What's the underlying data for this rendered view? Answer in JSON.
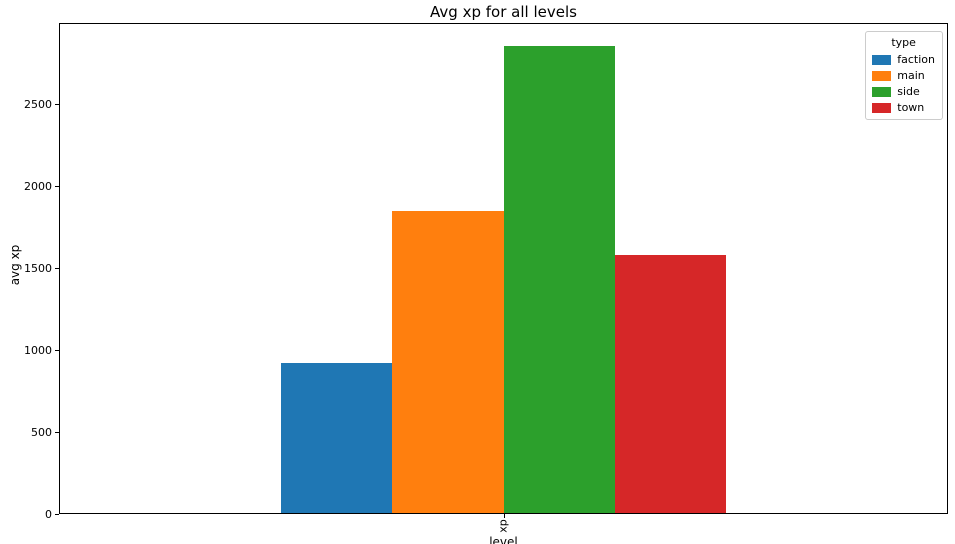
{
  "figure": {
    "title": "Avg xp for all levels"
  },
  "chart_data": {
    "type": "bar",
    "title": "Avg xp for all levels",
    "xlabel": "level",
    "ylabel": "avg xp",
    "categories": [
      "xp"
    ],
    "series": [
      {
        "name": "faction",
        "color": "#1f77b4",
        "values": [
          925
        ]
      },
      {
        "name": "main",
        "color": "#ff7f0e",
        "values": [
          1850
        ]
      },
      {
        "name": "side",
        "color": "#2ca02c",
        "values": [
          2860
        ]
      },
      {
        "name": "town",
        "color": "#d62728",
        "values": [
          1580
        ]
      }
    ],
    "ylim": [
      0,
      3000
    ],
    "yticks": [
      0,
      500,
      1000,
      1500,
      2000,
      2500
    ],
    "grid": false,
    "legend": {
      "title": "type",
      "position": "upper right"
    }
  }
}
